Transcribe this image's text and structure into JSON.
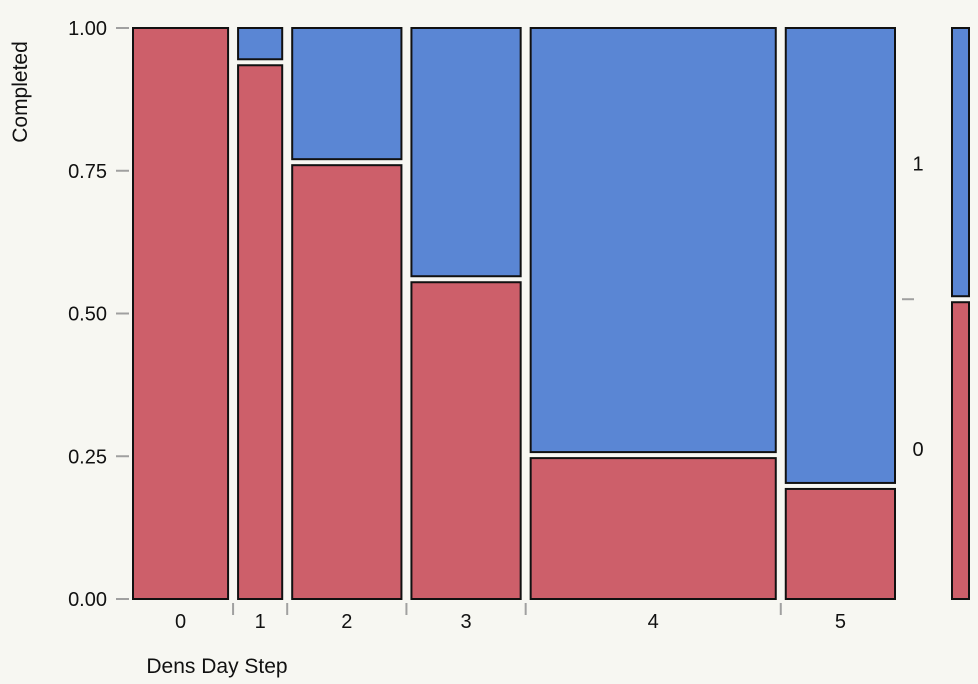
{
  "chart_data": {
    "type": "mosaic",
    "xlabel": "Dens Day Step",
    "ylabel": "Completed",
    "ylim": [
      0,
      1
    ],
    "y_ticks": [
      "0.00",
      "0.25",
      "0.50",
      "0.75",
      "1.00"
    ],
    "categories": [
      "0",
      "1",
      "2",
      "3",
      "4",
      "5"
    ],
    "category_weights": [
      0.175,
      0.085,
      0.2,
      0.2,
      0.44,
      0.2
    ],
    "series": [
      {
        "name": "0",
        "values": [
          1.0,
          0.94,
          0.765,
          0.56,
          0.252,
          0.198
        ]
      },
      {
        "name": "1",
        "values": [
          0.0,
          0.06,
          0.235,
          0.44,
          0.748,
          0.802
        ]
      }
    ],
    "overall": {
      "0": 0.525,
      "1": 0.475
    },
    "legend_labels": [
      "0",
      "1"
    ],
    "colors": {
      "0": "#cd5f6a",
      "1": "#5a86d4",
      "outline": "#111111",
      "axis": "#a0a0a0",
      "background": "#f7f7f2"
    }
  }
}
